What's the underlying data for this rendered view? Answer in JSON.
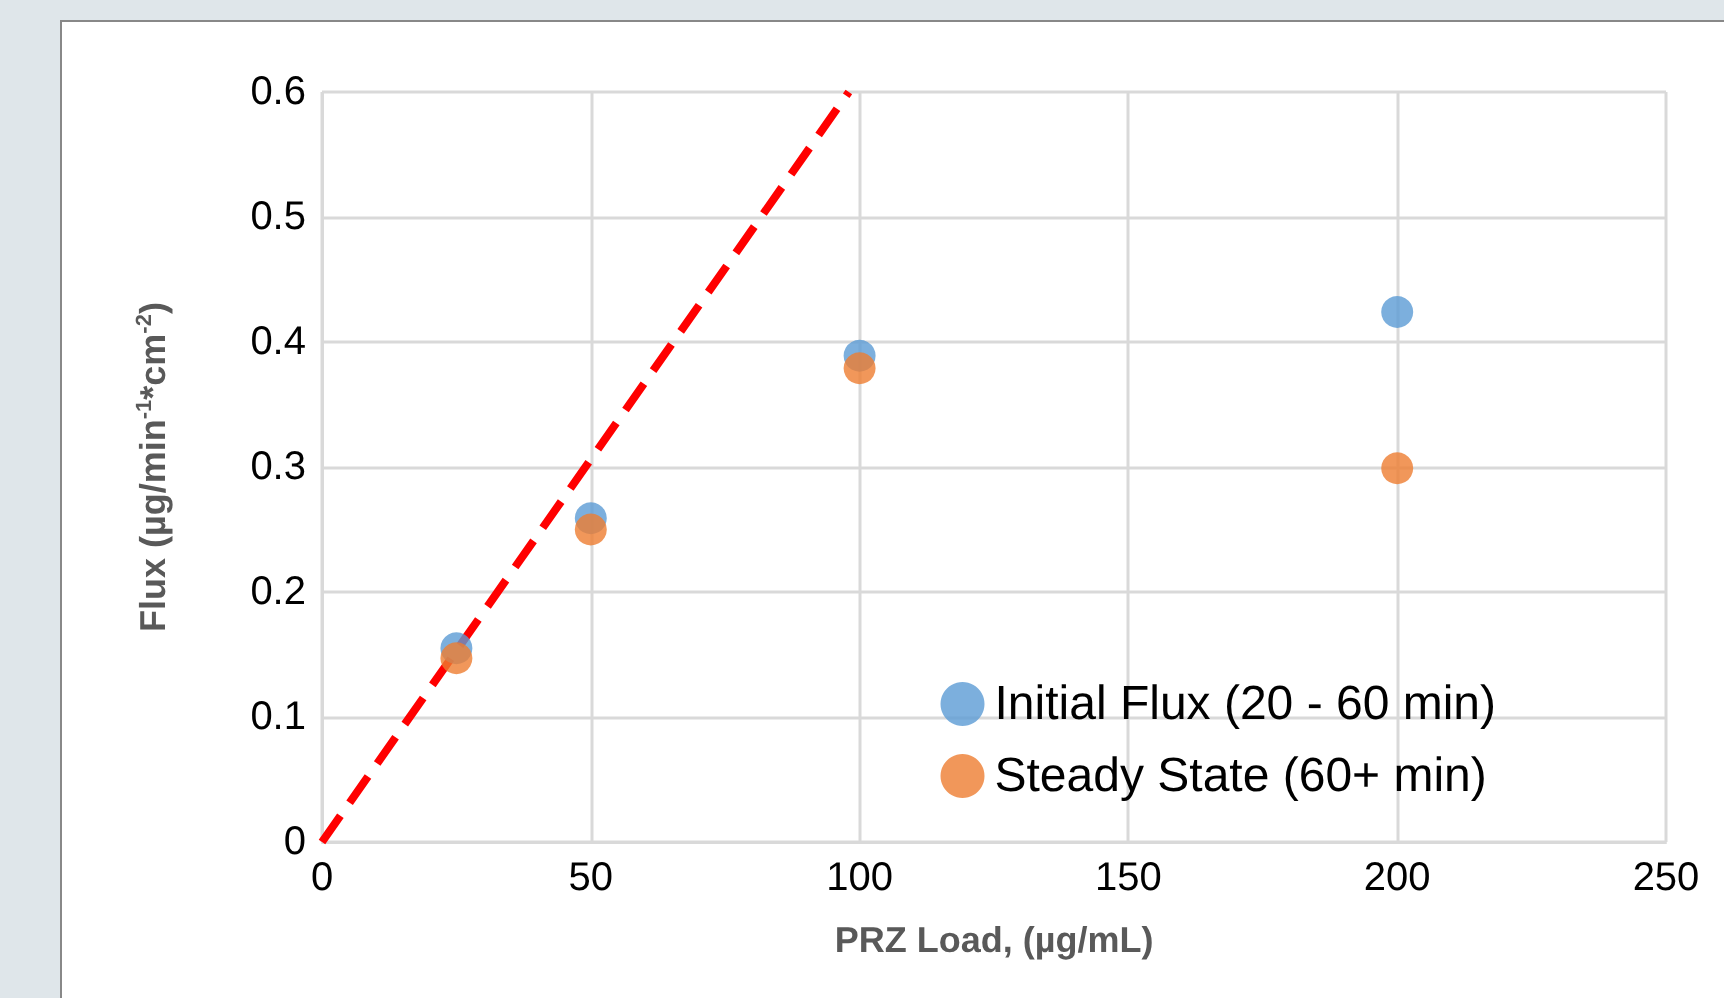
{
  "chart_data": {
    "type": "scatter",
    "xlabel": "PRZ Load, (µg/mL)",
    "ylabel": "Flux (µg/min$^{-1}$*cm$^{-2}$)",
    "xlim": [
      0,
      250
    ],
    "xticks": [
      0,
      50,
      100,
      150,
      200,
      250
    ],
    "ylim": [
      0,
      0.6
    ],
    "yticks": [
      0,
      0.1,
      0.2,
      0.3,
      0.4,
      0.5,
      0.6
    ],
    "grid": true,
    "legend": "bottom right",
    "marker": "circle",
    "series": [
      {
        "name": "Initial Flux (20 - 60 min)",
        "color": "#5b9bd5",
        "x": [
          25,
          50,
          100,
          200
        ],
        "values": [
          0.155,
          0.259,
          0.389,
          0.424
        ]
      },
      {
        "name": "Steady State (60+ min)",
        "color": "#ed7d31",
        "x": [
          25,
          50,
          100,
          200
        ],
        "values": [
          0.147,
          0.25,
          0.379,
          0.299
        ]
      },
      {
        "type": "line",
        "color": "#ff0000",
        "line_style": "dashed",
        "marker": "none",
        "x": [
          0,
          98
        ],
        "values": [
          0,
          0.6
        ]
      }
    ]
  }
}
